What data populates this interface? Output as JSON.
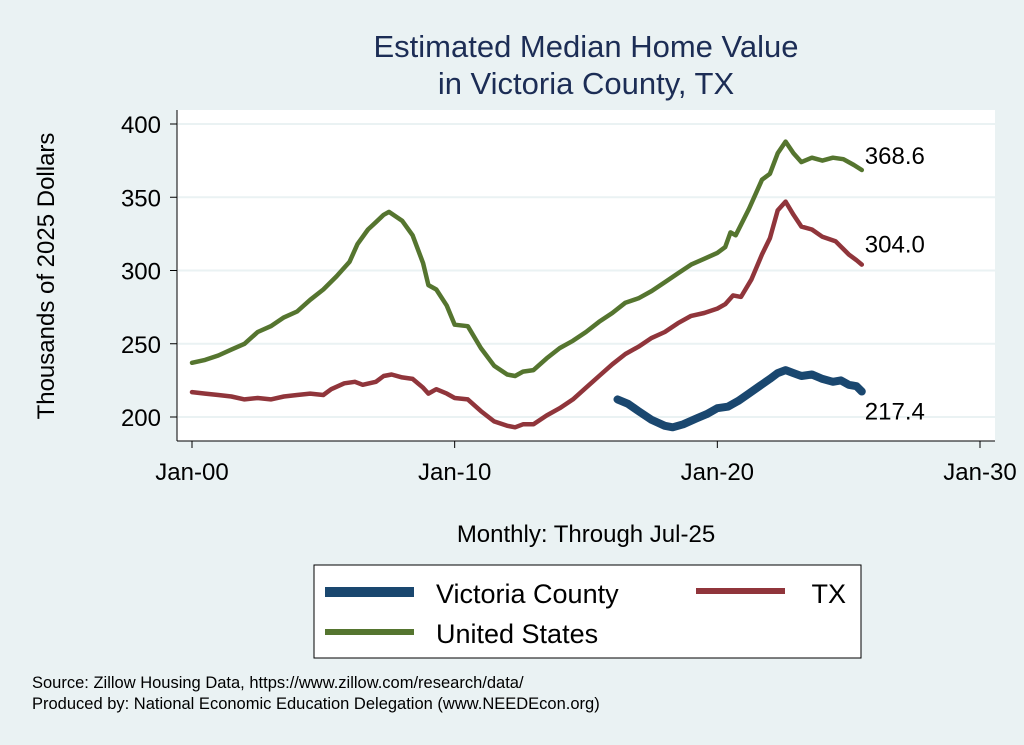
{
  "chart_data": {
    "type": "line",
    "title": [
      "Estimated Median Home Value",
      "in Victoria County, TX"
    ],
    "xlabel": "Monthly: Through Jul-25",
    "ylabel": "Thousands of 2025 Dollars",
    "xlim": [
      2000,
      2030
    ],
    "ylim": [
      190,
      410
    ],
    "x_ticks": [
      {
        "value": 2000,
        "label": "Jan-00"
      },
      {
        "value": 2010,
        "label": "Jan-10"
      },
      {
        "value": 2020,
        "label": "Jan-20"
      },
      {
        "value": 2030,
        "label": "Jan-30"
      }
    ],
    "y_ticks": [
      200,
      250,
      300,
      350,
      400
    ],
    "grid": true,
    "legend_position": "bottom",
    "series": [
      {
        "name": "Victoria County",
        "color": "#1a476f",
        "end_label": "217.4",
        "points": [
          [
            2016.2,
            212
          ],
          [
            2016.6,
            209
          ],
          [
            2017.0,
            204
          ],
          [
            2017.5,
            198
          ],
          [
            2018.0,
            194
          ],
          [
            2018.3,
            193
          ],
          [
            2018.7,
            195
          ],
          [
            2019.2,
            199
          ],
          [
            2019.6,
            202
          ],
          [
            2020.0,
            206
          ],
          [
            2020.4,
            207
          ],
          [
            2020.8,
            211
          ],
          [
            2021.2,
            216
          ],
          [
            2021.6,
            221
          ],
          [
            2022.0,
            226
          ],
          [
            2022.3,
            230
          ],
          [
            2022.6,
            232
          ],
          [
            2022.9,
            230
          ],
          [
            2023.2,
            228
          ],
          [
            2023.6,
            229
          ],
          [
            2024.0,
            226
          ],
          [
            2024.4,
            224
          ],
          [
            2024.7,
            225
          ],
          [
            2025.0,
            222
          ],
          [
            2025.3,
            221
          ],
          [
            2025.5,
            217.4
          ]
        ]
      },
      {
        "name": "TX",
        "color": "#90353b",
        "end_label": "304.0",
        "points": [
          [
            2000.0,
            217
          ],
          [
            2000.5,
            216
          ],
          [
            2001.0,
            215
          ],
          [
            2001.5,
            214
          ],
          [
            2002.0,
            212
          ],
          [
            2002.5,
            213
          ],
          [
            2003.0,
            212
          ],
          [
            2003.5,
            214
          ],
          [
            2004.0,
            215
          ],
          [
            2004.5,
            216
          ],
          [
            2005.0,
            215
          ],
          [
            2005.3,
            219
          ],
          [
            2005.8,
            223
          ],
          [
            2006.2,
            224
          ],
          [
            2006.5,
            222
          ],
          [
            2007.0,
            224
          ],
          [
            2007.3,
            228
          ],
          [
            2007.6,
            229
          ],
          [
            2008.0,
            227
          ],
          [
            2008.4,
            226
          ],
          [
            2008.8,
            220
          ],
          [
            2009.0,
            216
          ],
          [
            2009.3,
            219
          ],
          [
            2009.7,
            216
          ],
          [
            2010.0,
            213
          ],
          [
            2010.5,
            212
          ],
          [
            2011.0,
            204
          ],
          [
            2011.5,
            197
          ],
          [
            2012.0,
            194
          ],
          [
            2012.3,
            193
          ],
          [
            2012.6,
            195
          ],
          [
            2013.0,
            195
          ],
          [
            2013.5,
            201
          ],
          [
            2014.0,
            206
          ],
          [
            2014.5,
            212
          ],
          [
            2015.0,
            220
          ],
          [
            2015.5,
            228
          ],
          [
            2016.0,
            236
          ],
          [
            2016.5,
            243
          ],
          [
            2017.0,
            248
          ],
          [
            2017.5,
            254
          ],
          [
            2018.0,
            258
          ],
          [
            2018.5,
            264
          ],
          [
            2019.0,
            269
          ],
          [
            2019.5,
            271
          ],
          [
            2020.0,
            274
          ],
          [
            2020.3,
            277
          ],
          [
            2020.6,
            283
          ],
          [
            2020.9,
            282
          ],
          [
            2021.3,
            294
          ],
          [
            2021.7,
            311
          ],
          [
            2022.0,
            322
          ],
          [
            2022.3,
            341
          ],
          [
            2022.6,
            347
          ],
          [
            2022.9,
            338
          ],
          [
            2023.2,
            330
          ],
          [
            2023.6,
            328
          ],
          [
            2024.0,
            323
          ],
          [
            2024.5,
            320
          ],
          [
            2025.0,
            311
          ],
          [
            2025.3,
            307
          ],
          [
            2025.5,
            304.0
          ]
        ]
      },
      {
        "name": "United States",
        "color": "#55752f",
        "end_label": "368.6",
        "points": [
          [
            2000.0,
            237
          ],
          [
            2000.5,
            239
          ],
          [
            2001.0,
            242
          ],
          [
            2001.5,
            246
          ],
          [
            2002.0,
            250
          ],
          [
            2002.5,
            258
          ],
          [
            2003.0,
            262
          ],
          [
            2003.5,
            268
          ],
          [
            2004.0,
            272
          ],
          [
            2004.5,
            280
          ],
          [
            2005.0,
            287
          ],
          [
            2005.5,
            296
          ],
          [
            2006.0,
            306
          ],
          [
            2006.3,
            318
          ],
          [
            2006.7,
            328
          ],
          [
            2007.0,
            333
          ],
          [
            2007.3,
            338
          ],
          [
            2007.5,
            340
          ],
          [
            2008.0,
            334
          ],
          [
            2008.4,
            324
          ],
          [
            2008.8,
            305
          ],
          [
            2009.0,
            290
          ],
          [
            2009.3,
            287
          ],
          [
            2009.7,
            276
          ],
          [
            2010.0,
            263
          ],
          [
            2010.5,
            262
          ],
          [
            2011.0,
            247
          ],
          [
            2011.5,
            235
          ],
          [
            2012.0,
            229
          ],
          [
            2012.3,
            228
          ],
          [
            2012.6,
            231
          ],
          [
            2013.0,
            232
          ],
          [
            2013.5,
            240
          ],
          [
            2014.0,
            247
          ],
          [
            2014.5,
            252
          ],
          [
            2015.0,
            258
          ],
          [
            2015.5,
            265
          ],
          [
            2016.0,
            271
          ],
          [
            2016.5,
            278
          ],
          [
            2017.0,
            281
          ],
          [
            2017.5,
            286
          ],
          [
            2018.0,
            292
          ],
          [
            2018.5,
            298
          ],
          [
            2019.0,
            304
          ],
          [
            2019.5,
            308
          ],
          [
            2020.0,
            312
          ],
          [
            2020.3,
            316
          ],
          [
            2020.5,
            326
          ],
          [
            2020.7,
            324
          ],
          [
            2021.2,
            342
          ],
          [
            2021.7,
            362
          ],
          [
            2022.0,
            366
          ],
          [
            2022.3,
            380
          ],
          [
            2022.6,
            388
          ],
          [
            2022.9,
            380
          ],
          [
            2023.2,
            374
          ],
          [
            2023.6,
            377
          ],
          [
            2024.0,
            375
          ],
          [
            2024.4,
            377
          ],
          [
            2024.8,
            376
          ],
          [
            2025.2,
            372
          ],
          [
            2025.5,
            368.6
          ]
        ]
      }
    ],
    "legend": [
      {
        "label": "Victoria County",
        "color": "#1a476f"
      },
      {
        "label": "TX",
        "color": "#90353b"
      },
      {
        "label": "United States",
        "color": "#55752f"
      }
    ]
  },
  "footer": {
    "source": "Source: Zillow Housing Data, https://www.zillow.com/research/data/",
    "produced": "Produced by: National Economic Education Delegation (www.NEEDEcon.org)"
  }
}
